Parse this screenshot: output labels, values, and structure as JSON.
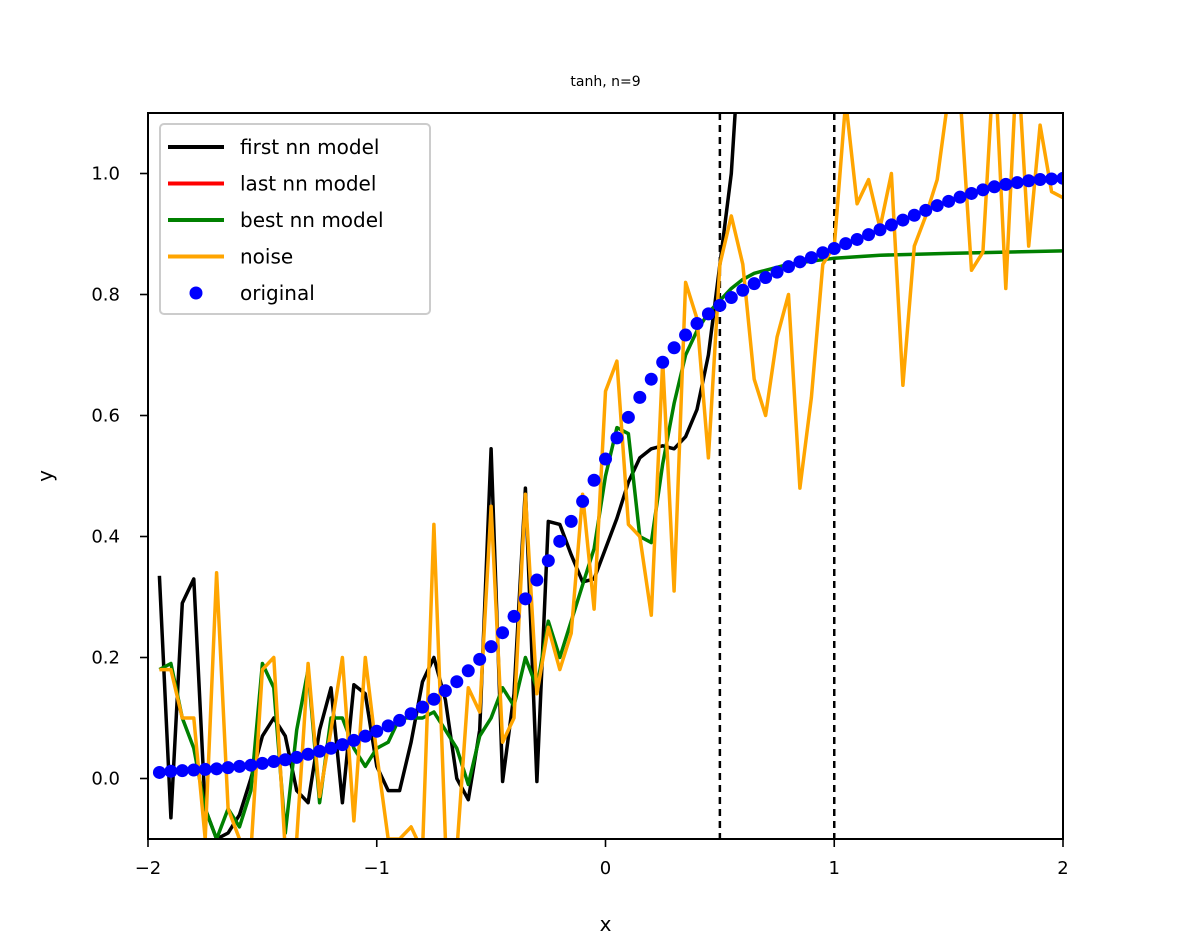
{
  "chart_data": {
    "type": "line",
    "title": "tanh, n=9",
    "xlabel": "x",
    "ylabel": "y",
    "xlim": [
      -2,
      2
    ],
    "ylim": [
      -0.1,
      1.1
    ],
    "x_ticks": [
      -2,
      -1,
      0,
      1,
      2
    ],
    "x_tick_labels": [
      "−2",
      "−1",
      "0",
      "1",
      "2"
    ],
    "y_ticks": [
      0.0,
      0.2,
      0.4,
      0.6,
      0.8,
      1.0
    ],
    "y_tick_labels": [
      "0.0",
      "0.2",
      "0.4",
      "0.6",
      "0.8",
      "1.0"
    ],
    "grid": false,
    "legend_position": "top-left",
    "vlines": [
      0.5,
      1.0
    ],
    "series": [
      {
        "name": "first nn model",
        "color": "#000000",
        "kind": "line",
        "x": [
          -1.95,
          -1.9,
          -1.85,
          -1.8,
          -1.75,
          -1.7,
          -1.65,
          -1.6,
          -1.55,
          -1.5,
          -1.45,
          -1.4,
          -1.35,
          -1.3,
          -1.25,
          -1.2,
          -1.15,
          -1.1,
          -1.05,
          -1.0,
          -0.95,
          -0.9,
          -0.85,
          -0.8,
          -0.75,
          -0.7,
          -0.65,
          -0.6,
          -0.55,
          -0.5,
          -0.45,
          -0.4,
          -0.35,
          -0.3,
          -0.25,
          -0.2,
          -0.15,
          -0.1,
          -0.05,
          0.0,
          0.05,
          0.1,
          0.15,
          0.2,
          0.25,
          0.3,
          0.35,
          0.4,
          0.45,
          0.5,
          0.55,
          0.57
        ],
        "y": [
          0.335,
          -0.065,
          0.29,
          0.33,
          -0.05,
          -0.1,
          -0.09,
          -0.06,
          0.0,
          0.07,
          0.1,
          0.07,
          -0.02,
          -0.04,
          0.08,
          0.15,
          -0.04,
          0.155,
          0.14,
          0.02,
          -0.02,
          -0.02,
          0.06,
          0.16,
          0.2,
          0.13,
          0.0,
          -0.035,
          0.08,
          0.545,
          -0.005,
          0.14,
          0.48,
          -0.005,
          0.425,
          0.42,
          0.37,
          0.325,
          0.33,
          0.38,
          0.43,
          0.49,
          0.53,
          0.545,
          0.55,
          0.545,
          0.565,
          0.61,
          0.7,
          0.85,
          1.0,
          1.12
        ]
      },
      {
        "name": "last nn model",
        "color": "#ff0000",
        "kind": "line",
        "x": [],
        "y": []
      },
      {
        "name": "best nn model",
        "color": "#008000",
        "kind": "line",
        "x": [
          -1.95,
          -1.9,
          -1.85,
          -1.8,
          -1.75,
          -1.7,
          -1.65,
          -1.6,
          -1.55,
          -1.5,
          -1.45,
          -1.4,
          -1.35,
          -1.3,
          -1.25,
          -1.2,
          -1.15,
          -1.1,
          -1.05,
          -1.0,
          -0.95,
          -0.9,
          -0.85,
          -0.8,
          -0.75,
          -0.7,
          -0.65,
          -0.6,
          -0.55,
          -0.5,
          -0.45,
          -0.4,
          -0.35,
          -0.3,
          -0.25,
          -0.2,
          -0.15,
          -0.1,
          -0.05,
          0.0,
          0.05,
          0.1,
          0.15,
          0.2,
          0.25,
          0.3,
          0.35,
          0.4,
          0.45,
          0.5,
          0.55,
          0.6,
          0.65,
          0.7,
          0.8,
          0.9,
          1.0,
          1.2,
          1.5,
          2.0
        ],
        "y": [
          0.18,
          0.19,
          0.1,
          0.05,
          -0.05,
          -0.1,
          -0.05,
          -0.08,
          -0.02,
          0.19,
          0.15,
          -0.09,
          0.08,
          0.18,
          -0.04,
          0.1,
          0.1,
          0.05,
          0.02,
          0.05,
          0.06,
          0.1,
          0.1,
          0.1,
          0.11,
          0.08,
          0.05,
          -0.01,
          0.07,
          0.1,
          0.15,
          0.12,
          0.2,
          0.15,
          0.26,
          0.2,
          0.26,
          0.32,
          0.38,
          0.5,
          0.58,
          0.57,
          0.4,
          0.39,
          0.52,
          0.62,
          0.7,
          0.74,
          0.77,
          0.79,
          0.81,
          0.825,
          0.835,
          0.84,
          0.85,
          0.855,
          0.86,
          0.865,
          0.868,
          0.872
        ]
      },
      {
        "name": "noise",
        "color": "#ffa500",
        "kind": "line",
        "x": [
          -1.95,
          -1.9,
          -1.85,
          -1.8,
          -1.75,
          -1.7,
          -1.65,
          -1.6,
          -1.55,
          -1.5,
          -1.45,
          -1.4,
          -1.35,
          -1.3,
          -1.25,
          -1.2,
          -1.15,
          -1.1,
          -1.05,
          -1.0,
          -0.95,
          -0.9,
          -0.85,
          -0.8,
          -0.75,
          -0.7,
          -0.65,
          -0.6,
          -0.55,
          -0.5,
          -0.45,
          -0.4,
          -0.35,
          -0.3,
          -0.25,
          -0.2,
          -0.15,
          -0.1,
          -0.05,
          0.0,
          0.05,
          0.1,
          0.15,
          0.2,
          0.25,
          0.3,
          0.35,
          0.4,
          0.45,
          0.5,
          0.55,
          0.6,
          0.65,
          0.7,
          0.75,
          0.8,
          0.85,
          0.9,
          0.95,
          1.0,
          1.05,
          1.1,
          1.15,
          1.2,
          1.25,
          1.3,
          1.35,
          1.4,
          1.45,
          1.5,
          1.55,
          1.6,
          1.65,
          1.7,
          1.75,
          1.8,
          1.85,
          1.9,
          1.95,
          2.0
        ],
        "y": [
          0.18,
          0.18,
          0.1,
          0.1,
          -0.1,
          0.34,
          -0.05,
          -0.1,
          -0.12,
          0.18,
          0.2,
          -0.12,
          -0.1,
          0.19,
          -0.03,
          0.08,
          0.2,
          -0.07,
          0.2,
          0.04,
          -0.1,
          -0.1,
          -0.08,
          -0.12,
          0.42,
          -0.1,
          -0.12,
          0.15,
          0.11,
          0.45,
          0.06,
          0.1,
          0.47,
          0.14,
          0.25,
          0.18,
          0.24,
          0.47,
          0.28,
          0.64,
          0.69,
          0.42,
          0.4,
          0.27,
          0.69,
          0.31,
          0.82,
          0.76,
          0.53,
          0.85,
          0.93,
          0.85,
          0.66,
          0.6,
          0.73,
          0.8,
          0.48,
          0.63,
          0.85,
          0.88,
          1.12,
          0.95,
          0.99,
          0.91,
          1.0,
          0.65,
          0.88,
          0.93,
          0.99,
          1.13,
          1.13,
          0.84,
          0.87,
          1.2,
          0.81,
          1.2,
          0.88,
          1.08,
          0.97,
          0.96
        ]
      },
      {
        "name": "original",
        "color": "#0000ff",
        "kind": "dots",
        "x": [
          -1.95,
          -1.9,
          -1.85,
          -1.8,
          -1.75,
          -1.7,
          -1.65,
          -1.6,
          -1.55,
          -1.5,
          -1.45,
          -1.4,
          -1.35,
          -1.3,
          -1.25,
          -1.2,
          -1.15,
          -1.1,
          -1.05,
          -1.0,
          -0.95,
          -0.9,
          -0.85,
          -0.8,
          -0.75,
          -0.7,
          -0.65,
          -0.6,
          -0.55,
          -0.5,
          -0.45,
          -0.4,
          -0.35,
          -0.3,
          -0.25,
          -0.2,
          -0.15,
          -0.1,
          -0.05,
          0.0,
          0.05,
          0.1,
          0.15,
          0.2,
          0.25,
          0.3,
          0.35,
          0.4,
          0.45,
          0.5,
          0.55,
          0.6,
          0.65,
          0.7,
          0.75,
          0.8,
          0.85,
          0.9,
          0.95,
          1.0,
          1.05,
          1.1,
          1.15,
          1.2,
          1.25,
          1.3,
          1.35,
          1.4,
          1.45,
          1.5,
          1.55,
          1.6,
          1.65,
          1.7,
          1.75,
          1.8,
          1.85,
          1.9,
          1.95,
          2.0
        ],
        "y": [
          0.01,
          0.012,
          0.013,
          0.014,
          0.015,
          0.016,
          0.018,
          0.02,
          0.022,
          0.025,
          0.028,
          0.031,
          0.035,
          0.04,
          0.045,
          0.05,
          0.056,
          0.063,
          0.07,
          0.078,
          0.087,
          0.096,
          0.107,
          0.118,
          0.131,
          0.145,
          0.16,
          0.178,
          0.197,
          0.218,
          0.241,
          0.268,
          0.297,
          0.328,
          0.36,
          0.392,
          0.425,
          0.458,
          0.493,
          0.528,
          0.563,
          0.597,
          0.63,
          0.66,
          0.688,
          0.712,
          0.733,
          0.752,
          0.768,
          0.782,
          0.795,
          0.807,
          0.818,
          0.828,
          0.837,
          0.846,
          0.854,
          0.861,
          0.869,
          0.876,
          0.884,
          0.891,
          0.899,
          0.907,
          0.915,
          0.923,
          0.931,
          0.939,
          0.947,
          0.954,
          0.961,
          0.967,
          0.973,
          0.978,
          0.982,
          0.985,
          0.988,
          0.99,
          0.991,
          0.992
        ]
      }
    ]
  }
}
